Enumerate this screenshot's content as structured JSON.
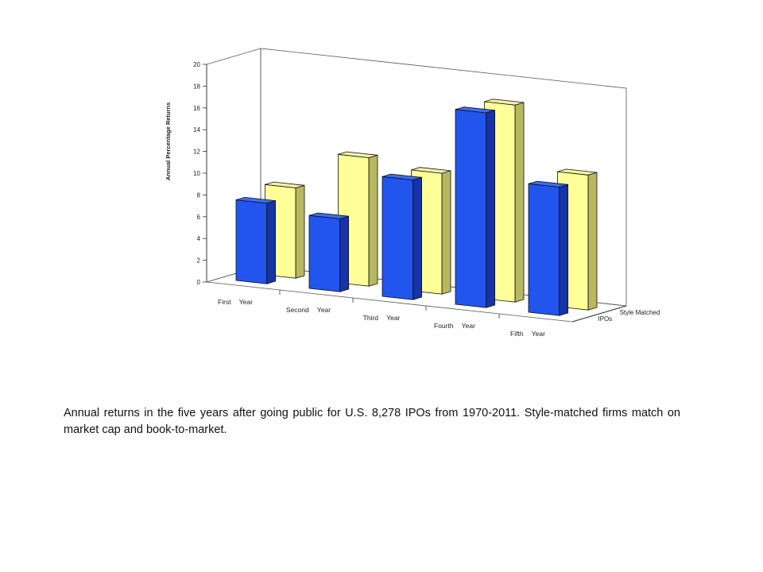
{
  "chart_data": {
    "type": "bar",
    "subtype": "3d-grouped",
    "ylabel": "Annual Percentage Returns",
    "xlabel": "",
    "ylim": [
      0,
      20
    ],
    "yticks": [
      0,
      2,
      4,
      6,
      8,
      10,
      12,
      14,
      16,
      18,
      20
    ],
    "categories": [
      "First Year",
      "Second Year",
      "Third Year",
      "Fourth Year",
      "Fifth Year"
    ],
    "series": [
      {
        "name": "IPOs",
        "values": [
          7.4,
          6.7,
          11.0,
          17.9,
          11.8
        ]
      },
      {
        "name": "Style Matched",
        "values": [
          8.3,
          11.8,
          11.1,
          18.1,
          12.4
        ]
      }
    ],
    "depth_labels": [
      "IPOs",
      "Style Matched"
    ],
    "grid": false,
    "colors": {
      "IPOs": "#2255ee",
      "Style Matched": "#ffff99"
    }
  },
  "caption": "Annual returns in the five years after going public for U.S. 8,278 IPOs from 1970-2011. Style-matched firms match on market cap and book-to-market."
}
